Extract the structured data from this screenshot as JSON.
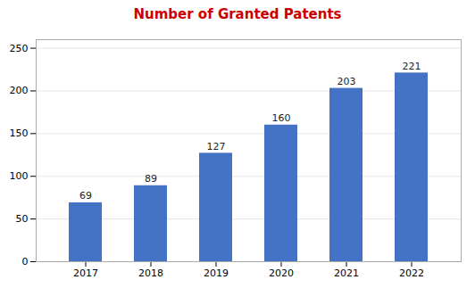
{
  "chart_data": {
    "type": "bar",
    "title": "Number of Granted Patents",
    "categories": [
      "2017",
      "2018",
      "2019",
      "2020",
      "2021",
      "2022"
    ],
    "values": [
      69,
      89,
      127,
      160,
      203,
      221
    ],
    "color": "#4472C4",
    "ylim": [
      0,
      260
    ],
    "yticks": [
      0,
      50,
      100,
      150,
      200,
      250
    ],
    "grid": true,
    "data_labels": true
  }
}
